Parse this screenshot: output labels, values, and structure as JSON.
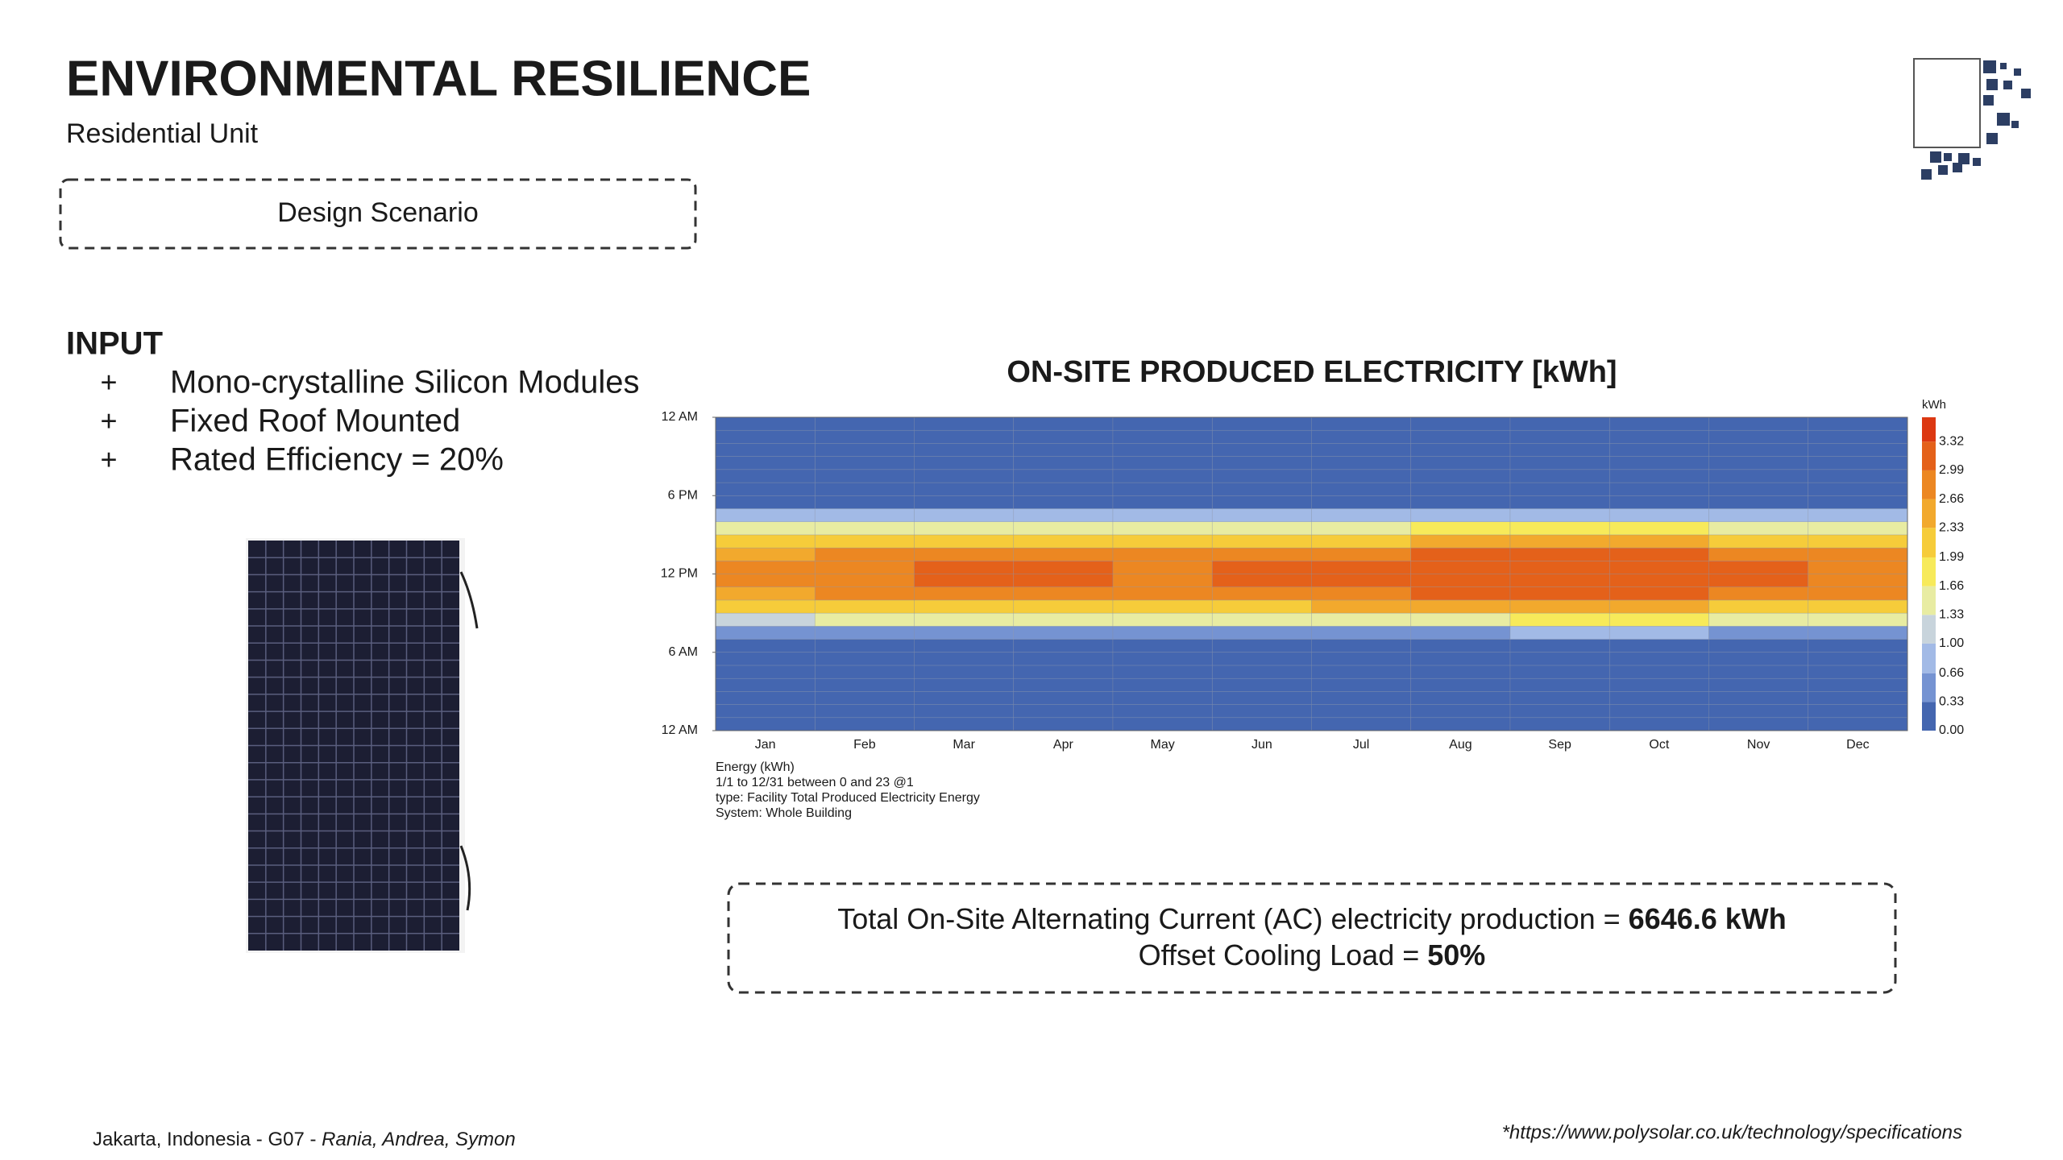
{
  "header": {
    "title": "ENVIRONMENTAL RESILIENCE",
    "subtitle": "Residential Unit"
  },
  "scenario": "Design Scenario",
  "input": {
    "heading": "INPUT",
    "bullet": "+",
    "items": [
      "Mono-crystalline Silicon Modules",
      "Fixed Roof Mounted",
      "Rated Efficiency = 20%"
    ]
  },
  "chart_data": {
    "type": "heatmap",
    "title": "ON-SITE PRODUCED ELECTRICITY [kWh]",
    "categories": [
      "Jan",
      "Feb",
      "Mar",
      "Apr",
      "May",
      "Jun",
      "Jul",
      "Aug",
      "Sep",
      "Oct",
      "Nov",
      "Dec"
    ],
    "ylim": [
      0,
      24
    ],
    "yticks": [
      {
        "value": 24,
        "label": "12 AM"
      },
      {
        "value": 18,
        "label": "6 PM"
      },
      {
        "value": 12,
        "label": "12 PM"
      },
      {
        "value": 6,
        "label": "6 AM"
      },
      {
        "value": 0,
        "label": "12 AM"
      }
    ],
    "z": [
      [
        0,
        0,
        0,
        0,
        0,
        0,
        0.1,
        0.5,
        1.3,
        2.1,
        2.6,
        2.8,
        2.8,
        2.6,
        2.1,
        1.5,
        0.8,
        0.2,
        0,
        0,
        0,
        0,
        0,
        0
      ],
      [
        0,
        0,
        0,
        0,
        0,
        0,
        0.1,
        0.5,
        1.4,
        2.2,
        2.7,
        2.9,
        2.9,
        2.7,
        2.2,
        1.5,
        0.8,
        0.2,
        0,
        0,
        0,
        0,
        0,
        0
      ],
      [
        0,
        0,
        0,
        0,
        0,
        0,
        0.1,
        0.6,
        1.4,
        2.2,
        2.8,
        3.0,
        3.0,
        2.7,
        2.2,
        1.5,
        0.8,
        0.2,
        0,
        0,
        0,
        0,
        0,
        0
      ],
      [
        0,
        0,
        0,
        0,
        0,
        0,
        0.1,
        0.6,
        1.5,
        2.3,
        2.8,
        3.0,
        3.0,
        2.8,
        2.3,
        1.6,
        0.8,
        0.2,
        0,
        0,
        0,
        0,
        0,
        0
      ],
      [
        0,
        0,
        0,
        0,
        0,
        0,
        0.1,
        0.5,
        1.4,
        2.3,
        2.8,
        2.9,
        2.9,
        2.7,
        2.2,
        1.5,
        0.7,
        0.1,
        0,
        0,
        0,
        0,
        0,
        0
      ],
      [
        0,
        0,
        0,
        0,
        0,
        0,
        0.1,
        0.5,
        1.4,
        2.3,
        2.8,
        3.0,
        3.0,
        2.8,
        2.2,
        1.5,
        0.7,
        0.1,
        0,
        0,
        0,
        0,
        0,
        0
      ],
      [
        0,
        0,
        0,
        0,
        0,
        0,
        0.1,
        0.5,
        1.5,
        2.4,
        2.9,
        3.1,
        3.1,
        2.9,
        2.3,
        1.6,
        0.8,
        0.1,
        0,
        0,
        0,
        0,
        0,
        0
      ],
      [
        0,
        0,
        0,
        0,
        0,
        0,
        0.1,
        0.6,
        1.6,
        2.5,
        3.0,
        3.2,
        3.2,
        3.0,
        2.4,
        1.7,
        0.8,
        0.2,
        0,
        0,
        0,
        0,
        0,
        0
      ],
      [
        0,
        0,
        0,
        0,
        0,
        0,
        0.1,
        0.7,
        1.7,
        2.6,
        3.1,
        3.3,
        3.3,
        3.0,
        2.4,
        1.7,
        0.9,
        0.2,
        0,
        0,
        0,
        0,
        0,
        0
      ],
      [
        0,
        0,
        0,
        0,
        0,
        0,
        0.2,
        0.7,
        1.7,
        2.6,
        3.1,
        3.3,
        3.2,
        3.0,
        2.4,
        1.7,
        0.9,
        0.2,
        0,
        0,
        0,
        0,
        0,
        0
      ],
      [
        0,
        0,
        0,
        0,
        0,
        0,
        0.2,
        0.6,
        1.5,
        2.3,
        2.8,
        3.0,
        3.0,
        2.7,
        2.2,
        1.5,
        0.8,
        0.2,
        0,
        0,
        0,
        0,
        0,
        0
      ],
      [
        0,
        0,
        0,
        0,
        0,
        0,
        0.1,
        0.5,
        1.4,
        2.2,
        2.7,
        2.9,
        2.9,
        2.7,
        2.1,
        1.5,
        0.8,
        0.2,
        0,
        0,
        0,
        0,
        0,
        0
      ]
    ],
    "colorbar": {
      "title": "kWh",
      "lim": [
        0,
        3.6
      ],
      "ticks": [
        {
          "value": 0,
          "label": "0.00"
        },
        {
          "value": 0.33,
          "label": "0.33"
        },
        {
          "value": 0.66,
          "label": "0.66"
        },
        {
          "value": 1,
          "label": "1.00"
        },
        {
          "value": 1.33,
          "label": "1.33"
        },
        {
          "value": 1.66,
          "label": "1.66"
        },
        {
          "value": 1.99,
          "label": "1.99"
        },
        {
          "value": 2.33,
          "label": "2.33"
        },
        {
          "value": 2.66,
          "label": "2.66"
        },
        {
          "value": 2.99,
          "label": "2.99"
        },
        {
          "value": 3.32,
          "label": "3.32"
        }
      ],
      "colors": [
        "#4466b0",
        "#7593d2",
        "#a2bae6",
        "#c8d4dc",
        "#e8eca2",
        "#f7ea5a",
        "#f6cc3a",
        "#f2a92d",
        "#ec8722",
        "#e4611a",
        "#dc3812"
      ]
    },
    "notes": [
      "Energy (kWh)",
      "1/1 to 12/31 between 0 and 23 @1",
      "type: Facility Total Produced Electricity Energy",
      "System: Whole Building"
    ]
  },
  "summary": [
    {
      "text": "Total On-Site Alternating Current (AC) electricity production = ",
      "value": "6646.6 kWh"
    },
    {
      "text": "Offset Cooling Load = ",
      "value": "50%"
    }
  ],
  "footer": {
    "location": "Jakarta, Indonesia - G07 - ",
    "authors": "Rania, Andrea, Symon",
    "source": "*https://www.polysolar.co.uk/technology/specifications"
  }
}
